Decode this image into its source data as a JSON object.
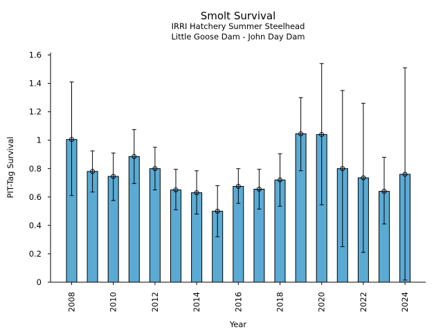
{
  "chart_data": {
    "type": "bar",
    "title": "Smolt Survival",
    "subtitle_lines": [
      "IRRI Hatchery Summer Steelhead",
      "Little Goose Dam - John Day Dam"
    ],
    "xlabel": "Year",
    "ylabel": "PIT-Tag Survival",
    "ylim": [
      0,
      1.6
    ],
    "yticks": [
      0,
      0.2,
      0.4,
      0.6,
      0.8,
      1,
      1.2,
      1.4,
      1.6
    ],
    "ytick_labels": [
      "0",
      "0.2",
      "0.4",
      "0.6",
      "0.8",
      "1",
      "1.2",
      "1.4",
      "1.6"
    ],
    "xtick_labels": [
      "2008",
      "2010",
      "2012",
      "2014",
      "2016",
      "2018",
      "2020",
      "2022",
      "2024"
    ],
    "categories": [
      2008,
      2009,
      2010,
      2011,
      2012,
      2013,
      2014,
      2015,
      2016,
      2017,
      2018,
      2019,
      2020,
      2021,
      2022,
      2023,
      2024
    ],
    "values": [
      1.005,
      0.78,
      0.745,
      0.885,
      0.8,
      0.65,
      0.63,
      0.5,
      0.675,
      0.655,
      0.72,
      1.045,
      1.04,
      0.8,
      0.735,
      0.64,
      0.76
    ],
    "err_low": [
      0.61,
      0.635,
      0.575,
      0.695,
      0.65,
      0.51,
      0.48,
      0.32,
      0.555,
      0.515,
      0.535,
      0.785,
      0.545,
      0.25,
      0.21,
      0.41,
      0.015
    ],
    "err_high": [
      1.41,
      0.925,
      0.91,
      1.075,
      0.95,
      0.795,
      0.785,
      0.68,
      0.8,
      0.795,
      0.905,
      1.3,
      1.54,
      1.35,
      1.26,
      0.88,
      1.51
    ],
    "bar_color": "#5aaad4",
    "edge_color": "#000000",
    "grid": false
  }
}
